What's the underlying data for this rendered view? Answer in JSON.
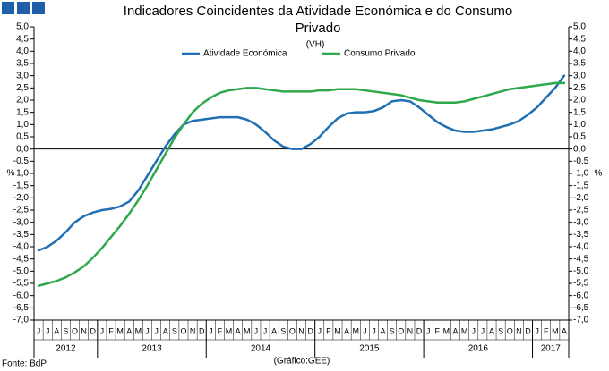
{
  "chart_data": {
    "type": "line",
    "title": "Indicadores Coincidentes da Atividade Económica e do Consumo",
    "title_line2": "Privado",
    "subtitle": "(VH)",
    "y_label": "%",
    "y2_label": "%",
    "source": "Fonte: BdP",
    "credit": "(Gráfico:GEE)",
    "categories": [
      "J",
      "J",
      "A",
      "S",
      "O",
      "N",
      "D",
      "J",
      "F",
      "M",
      "A",
      "M",
      "J",
      "J",
      "A",
      "S",
      "O",
      "N",
      "D",
      "J",
      "F",
      "M",
      "A",
      "M",
      "J",
      "J",
      "A",
      "S",
      "O",
      "N",
      "D",
      "J",
      "F",
      "M",
      "A",
      "M",
      "J",
      "J",
      "A",
      "S",
      "O",
      "N",
      "D",
      "J",
      "F",
      "M",
      "A",
      "M",
      "J",
      "J",
      "A",
      "S",
      "O",
      "N",
      "D",
      "J",
      "F",
      "M",
      "A"
    ],
    "years": [
      "2012",
      "2013",
      "2014",
      "2015",
      "2016",
      "2017"
    ],
    "series": [
      {
        "name": "Atividade Económica",
        "color": "#1f6fb4",
        "values": [
          -4.15,
          -4.0,
          -3.75,
          -3.4,
          -3.0,
          -2.75,
          -2.6,
          -2.5,
          -2.45,
          -2.35,
          -2.15,
          -1.7,
          -1.1,
          -0.5,
          0.1,
          0.6,
          1.0,
          1.15,
          1.2,
          1.25,
          1.3,
          1.3,
          1.3,
          1.2,
          1.0,
          0.7,
          0.35,
          0.1,
          0.0,
          0.0,
          0.2,
          0.5,
          0.9,
          1.25,
          1.45,
          1.5,
          1.5,
          1.55,
          1.7,
          1.95,
          2.0,
          1.95,
          1.7,
          1.4,
          1.1,
          0.9,
          0.75,
          0.7,
          0.7,
          0.75,
          0.8,
          0.9,
          1.0,
          1.15,
          1.4,
          1.7,
          2.1,
          2.5,
          3.0
        ]
      },
      {
        "name": "Consumo Privado",
        "color": "#2ea84a",
        "values": [
          -5.6,
          -5.5,
          -5.4,
          -5.25,
          -5.05,
          -4.8,
          -4.45,
          -4.05,
          -3.6,
          -3.15,
          -2.65,
          -2.1,
          -1.5,
          -0.85,
          -0.2,
          0.45,
          1.0,
          1.5,
          1.85,
          2.1,
          2.3,
          2.4,
          2.45,
          2.5,
          2.5,
          2.45,
          2.4,
          2.35,
          2.35,
          2.35,
          2.35,
          2.4,
          2.4,
          2.45,
          2.45,
          2.45,
          2.4,
          2.35,
          2.3,
          2.25,
          2.2,
          2.1,
          2.0,
          1.95,
          1.9,
          1.9,
          1.9,
          1.95,
          2.05,
          2.15,
          2.25,
          2.35,
          2.45,
          2.5,
          2.55,
          2.6,
          2.65,
          2.7,
          2.7
        ]
      }
    ],
    "ylim": [
      -7,
      5
    ],
    "yticks": [
      {
        "value": -7,
        "label": "-7,0"
      },
      {
        "value": -6.5,
        "label": "-6,5"
      },
      {
        "value": -6,
        "label": "-6,0"
      },
      {
        "value": -5.5,
        "label": "-5,5"
      },
      {
        "value": -5,
        "label": "-5,0"
      },
      {
        "value": -4.5,
        "label": "-4,5"
      },
      {
        "value": -4,
        "label": "-4,0"
      },
      {
        "value": -3.5,
        "label": "-3,5"
      },
      {
        "value": -3,
        "label": "-3,0"
      },
      {
        "value": -2.5,
        "label": "-2,5"
      },
      {
        "value": -2,
        "label": "-2,0"
      },
      {
        "value": -1.5,
        "label": "-1,5"
      },
      {
        "value": -1,
        "label": "-1,0"
      },
      {
        "value": -0.5,
        "label": "-0,5"
      },
      {
        "value": 0,
        "label": "0,0"
      },
      {
        "value": 0.5,
        "label": "0,5"
      },
      {
        "value": 1,
        "label": "1,0"
      },
      {
        "value": 1.5,
        "label": "1,5"
      },
      {
        "value": 2,
        "label": "2,0"
      },
      {
        "value": 2.5,
        "label": "2,5"
      },
      {
        "value": 3,
        "label": "3,0"
      },
      {
        "value": 3.5,
        "label": "3,5"
      },
      {
        "value": 4,
        "label": "4,0"
      },
      {
        "value": 4.5,
        "label": "4,5"
      },
      {
        "value": 5,
        "label": "5,0"
      }
    ],
    "y2lim": [
      -7,
      5
    ],
    "y2ticks": [
      {
        "value": -7,
        "label": "-7,0"
      },
      {
        "value": -6.5,
        "label": "-6,5"
      },
      {
        "value": -6,
        "label": "-6,0"
      },
      {
        "value": -5.5,
        "label": "-5,5"
      },
      {
        "value": -5,
        "label": "-5,0"
      },
      {
        "value": -4.5,
        "label": "-4,5"
      },
      {
        "value": -4,
        "label": "-4,0"
      },
      {
        "value": -3.5,
        "label": "-3,5"
      },
      {
        "value": -3,
        "label": "-3,0"
      },
      {
        "value": -2.5,
        "label": "-2,5"
      },
      {
        "value": -2,
        "label": "-2,0"
      },
      {
        "value": -1.5,
        "label": "-1,5"
      },
      {
        "value": -1,
        "label": "-1,0"
      },
      {
        "value": -0.5,
        "label": "-0,5"
      },
      {
        "value": 0,
        "label": "0,0"
      },
      {
        "value": 0.5,
        "label": "0,5"
      },
      {
        "value": 1,
        "label": "1,0"
      },
      {
        "value": 1.5,
        "label": "1,5"
      },
      {
        "value": 2,
        "label": "2,0"
      },
      {
        "value": 2.5,
        "label": "2,5"
      },
      {
        "value": 3,
        "label": "3,0"
      },
      {
        "value": 3.5,
        "label": "3,5"
      },
      {
        "value": 4,
        "label": "4,0"
      },
      {
        "value": 4.5,
        "label": "4,5"
      },
      {
        "value": 5,
        "label": "5,0"
      }
    ],
    "legend": "top",
    "grid": false
  }
}
